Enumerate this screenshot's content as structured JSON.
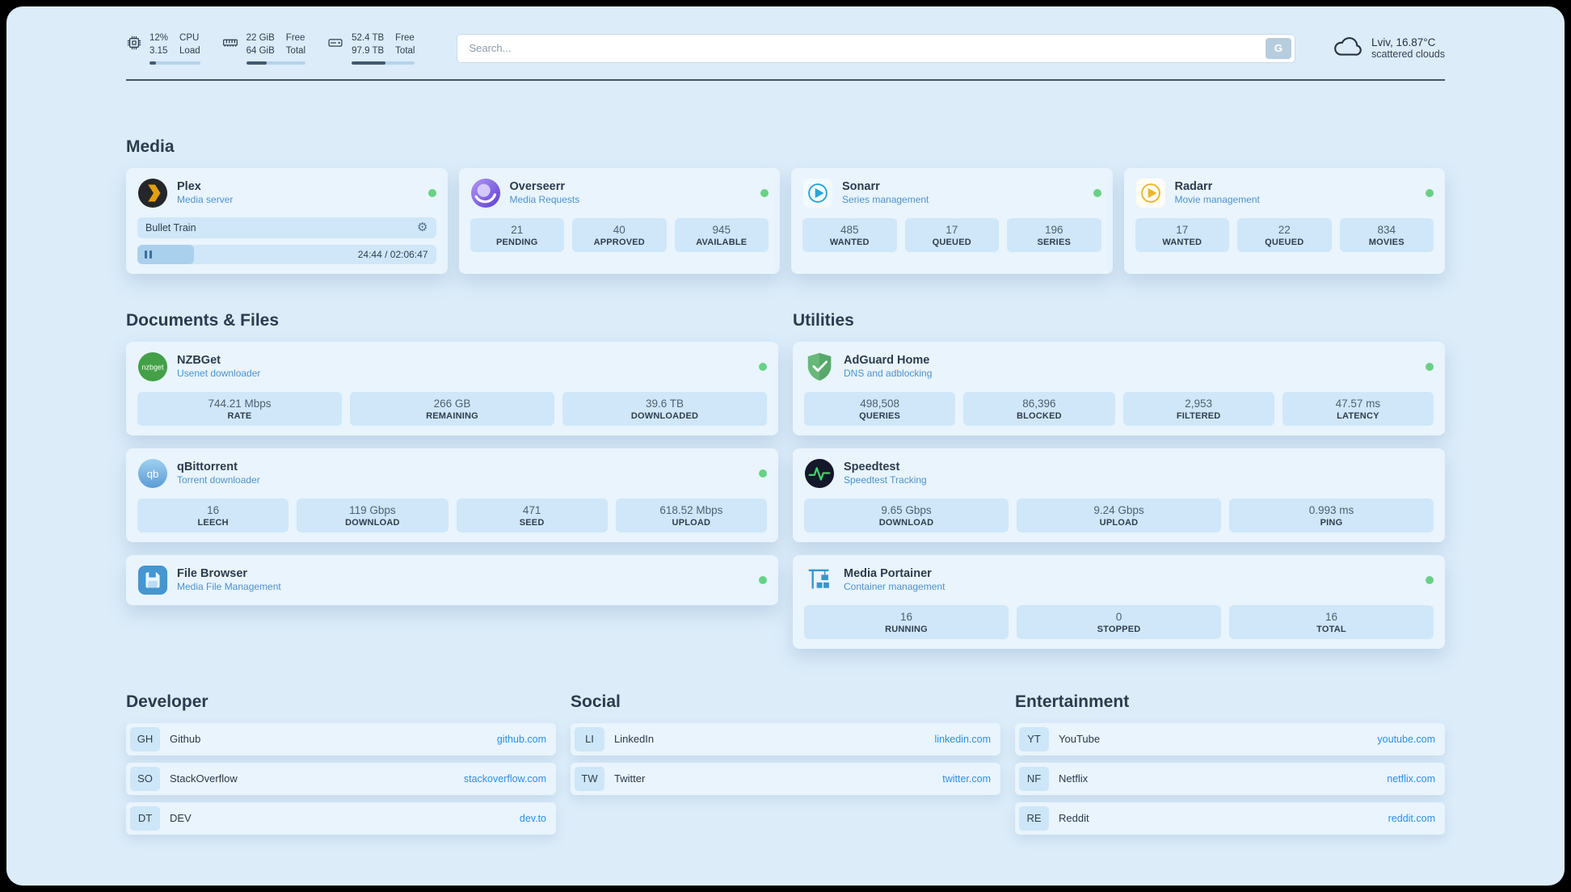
{
  "header": {
    "cpu": {
      "value_top": "12%",
      "value_bottom": "3.15",
      "label_top": "CPU",
      "label_bottom": "Load",
      "bar_percent": 12
    },
    "ram": {
      "value_top": "22 GiB",
      "value_bottom": "64 GiB",
      "label_top": "Free",
      "label_bottom": "Total",
      "bar_percent": 34
    },
    "disk": {
      "value_top": "52.4 TB",
      "value_bottom": "97.9 TB",
      "label_top": "Free",
      "label_bottom": "Total",
      "bar_percent": 54
    },
    "search": {
      "placeholder": "Search...",
      "button_label": "G"
    },
    "weather": {
      "location": "Lviv, 16.87°C",
      "condition": "scattered clouds"
    }
  },
  "media": {
    "title": "Media",
    "plex": {
      "name": "Plex",
      "subtitle": "Media server",
      "now_playing": "Bullet Train",
      "time": "24:44 / 02:06:47",
      "progress_percent": 19
    },
    "overseerr": {
      "name": "Overseerr",
      "subtitle": "Media Requests",
      "stats": [
        {
          "value": "21",
          "label": "PENDING"
        },
        {
          "value": "40",
          "label": "APPROVED"
        },
        {
          "value": "945",
          "label": "AVAILABLE"
        }
      ]
    },
    "sonarr": {
      "name": "Sonarr",
      "subtitle": "Series management",
      "stats": [
        {
          "value": "485",
          "label": "WANTED"
        },
        {
          "value": "17",
          "label": "QUEUED"
        },
        {
          "value": "196",
          "label": "SERIES"
        }
      ]
    },
    "radarr": {
      "name": "Radarr",
      "subtitle": "Movie management",
      "stats": [
        {
          "value": "17",
          "label": "WANTED"
        },
        {
          "value": "22",
          "label": "QUEUED"
        },
        {
          "value": "834",
          "label": "MOVIES"
        }
      ]
    }
  },
  "documents": {
    "title": "Documents & Files",
    "nzbget": {
      "name": "NZBGet",
      "subtitle": "Usenet downloader",
      "stats": [
        {
          "value": "744.21 Mbps",
          "label": "RATE"
        },
        {
          "value": "266 GB",
          "label": "REMAINING"
        },
        {
          "value": "39.6 TB",
          "label": "DOWNLOADED"
        }
      ]
    },
    "qbittorrent": {
      "name": "qBittorrent",
      "subtitle": "Torrent downloader",
      "stats": [
        {
          "value": "16",
          "label": "LEECH"
        },
        {
          "value": "119 Gbps",
          "label": "DOWNLOAD"
        },
        {
          "value": "471",
          "label": "SEED"
        },
        {
          "value": "618.52 Mbps",
          "label": "UPLOAD"
        }
      ]
    },
    "filebrowser": {
      "name": "File Browser",
      "subtitle": "Media File Management"
    }
  },
  "utilities": {
    "title": "Utilities",
    "adguard": {
      "name": "AdGuard Home",
      "subtitle": "DNS and adblocking",
      "stats": [
        {
          "value": "498,508",
          "label": "QUERIES"
        },
        {
          "value": "86,396",
          "label": "BLOCKED"
        },
        {
          "value": "2,953",
          "label": "FILTERED"
        },
        {
          "value": "47.57 ms",
          "label": "LATENCY"
        }
      ]
    },
    "speedtest": {
      "name": "Speedtest",
      "subtitle": "Speedtest Tracking",
      "stats": [
        {
          "value": "9.65 Gbps",
          "label": "DOWNLOAD"
        },
        {
          "value": "9.24 Gbps",
          "label": "UPLOAD"
        },
        {
          "value": "0.993 ms",
          "label": "PING"
        }
      ]
    },
    "portainer": {
      "name": "Media Portainer",
      "subtitle": "Container management",
      "stats": [
        {
          "value": "16",
          "label": "RUNNING"
        },
        {
          "value": "0",
          "label": "STOPPED"
        },
        {
          "value": "16",
          "label": "TOTAL"
        }
      ]
    }
  },
  "links": {
    "developer": {
      "title": "Developer",
      "items": [
        {
          "abbr": "GH",
          "name": "Github",
          "url": "github.com"
        },
        {
          "abbr": "SO",
          "name": "StackOverflow",
          "url": "stackoverflow.com"
        },
        {
          "abbr": "DT",
          "name": "DEV",
          "url": "dev.to"
        }
      ]
    },
    "social": {
      "title": "Social",
      "items": [
        {
          "abbr": "LI",
          "name": "LinkedIn",
          "url": "linkedin.com"
        },
        {
          "abbr": "TW",
          "name": "Twitter",
          "url": "twitter.com"
        }
      ]
    },
    "entertainment": {
      "title": "Entertainment",
      "items": [
        {
          "abbr": "YT",
          "name": "YouTube",
          "url": "youtube.com"
        },
        {
          "abbr": "NF",
          "name": "Netflix",
          "url": "netflix.com"
        },
        {
          "abbr": "RE",
          "name": "Reddit",
          "url": "reddit.com"
        }
      ]
    }
  }
}
